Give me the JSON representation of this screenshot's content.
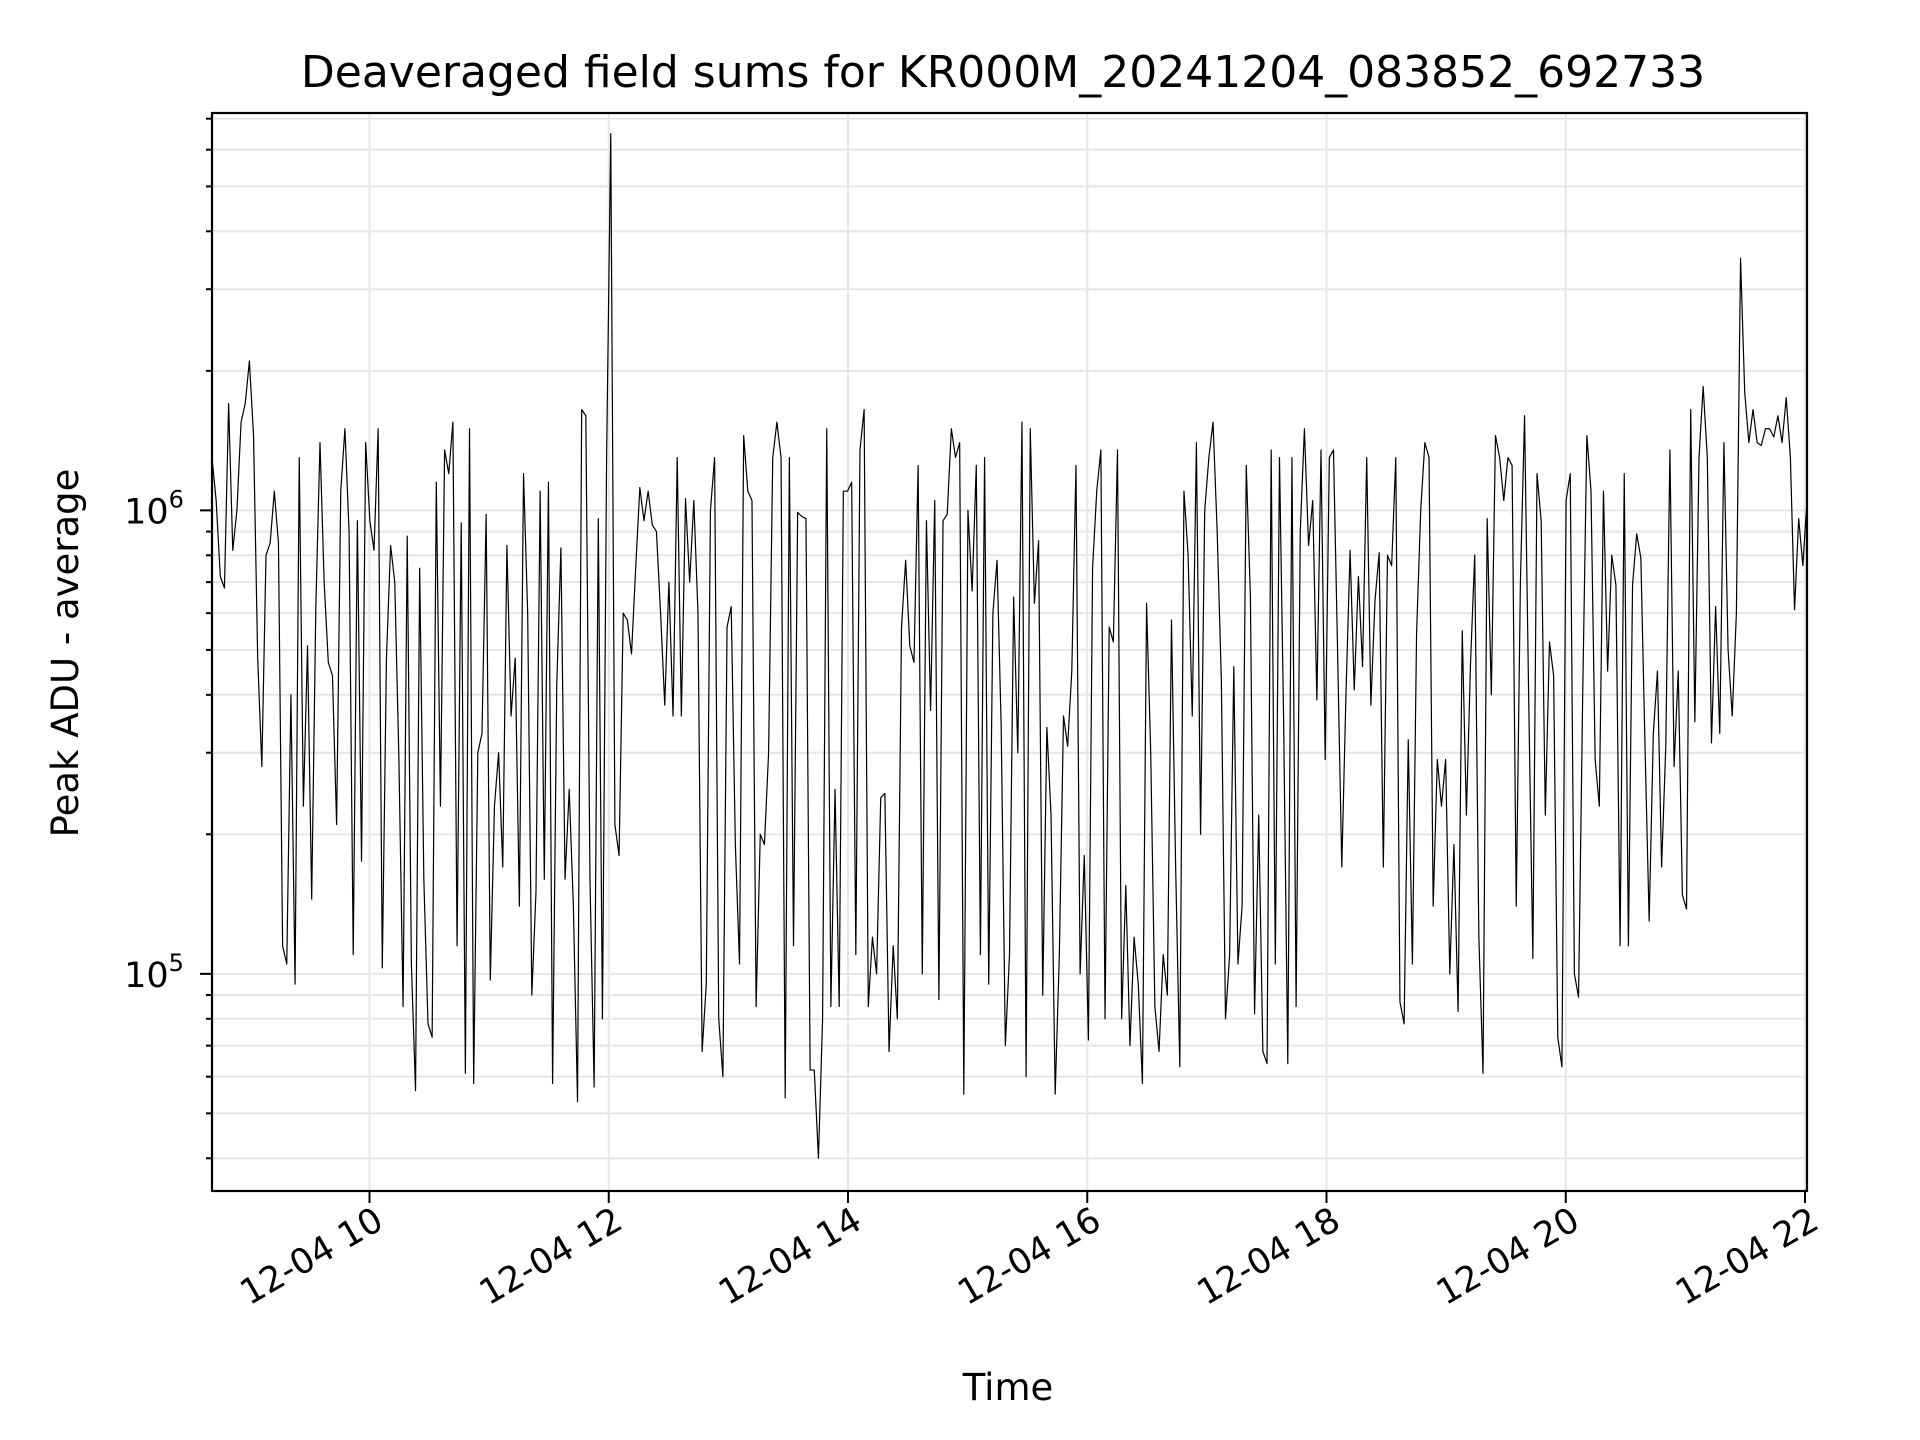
{
  "chart_data": {
    "type": "line",
    "title": "Deaveraged field sums for KR000M_20241204_083852_692733",
    "xlabel": "Time",
    "ylabel": "Peak ADU - average",
    "yscale": "log",
    "grid": true,
    "legend": "none",
    "line_color": "#000000",
    "grid_color": "#e6e6e6",
    "xlim": [
      "2024-12-04 08:41",
      "2024-12-04 22:01"
    ],
    "ylim": [
      34000,
      7200000
    ],
    "x_ticks": [
      {
        "value": "2024-12-04 10:00",
        "label": "12-04 10"
      },
      {
        "value": "2024-12-04 12:00",
        "label": "12-04 12"
      },
      {
        "value": "2024-12-04 14:00",
        "label": "12-04 14"
      },
      {
        "value": "2024-12-04 16:00",
        "label": "12-04 16"
      },
      {
        "value": "2024-12-04 18:00",
        "label": "12-04 18"
      },
      {
        "value": "2024-12-04 20:00",
        "label": "12-04 20"
      },
      {
        "value": "2024-12-04 22:00",
        "label": "12-04 22"
      }
    ],
    "y_ticks": [
      {
        "value": 100000,
        "base": "10",
        "exp": "5"
      },
      {
        "value": 1000000,
        "base": "10",
        "exp": "6"
      }
    ],
    "series": [
      {
        "x_start": "2024-12-04 08:41",
        "x_end": "2024-12-04 22:01",
        "values": [
          1300000,
          1050000,
          720000,
          680000,
          1700000,
          820000,
          1000000,
          1550000,
          1700000,
          2100000,
          1450000,
          480000,
          280000,
          800000,
          850000,
          1100000,
          850000,
          115000,
          105000,
          400000,
          95000,
          1300000,
          230000,
          510000,
          145000,
          620000,
          1400000,
          700000,
          470000,
          440000,
          210000,
          1100000,
          1500000,
          900000,
          110000,
          950000,
          175000,
          1400000,
          950000,
          820000,
          1500000,
          103000,
          480000,
          840000,
          700000,
          290000,
          85000,
          880000,
          105000,
          56000,
          750000,
          160000,
          78000,
          73000,
          1150000,
          230000,
          1350000,
          1200000,
          1550000,
          115000,
          940000,
          61000,
          1500000,
          58000,
          300000,
          330000,
          980000,
          97000,
          230000,
          300000,
          170000,
          840000,
          360000,
          480000,
          140000,
          1200000,
          600000,
          90000,
          150000,
          1100000,
          160000,
          1150000,
          58000,
          420000,
          830000,
          160000,
          250000,
          140000,
          53000,
          1650000,
          1600000,
          160000,
          57000,
          960000,
          80000,
          1300000,
          6500000,
          210000,
          180000,
          600000,
          580000,
          490000,
          750000,
          1120000,
          950000,
          1100000,
          930000,
          900000,
          600000,
          380000,
          700000,
          360000,
          1300000,
          360000,
          1060000,
          700000,
          1050000,
          600000,
          68000,
          95000,
          1000000,
          1300000,
          80000,
          60000,
          560000,
          620000,
          190000,
          105000,
          1450000,
          1100000,
          1050000,
          85000,
          200000,
          190000,
          300000,
          1300000,
          1550000,
          1300000,
          54000,
          1300000,
          115000,
          990000,
          970000,
          960000,
          62000,
          62000,
          40000,
          80000,
          1500000,
          85000,
          250000,
          85000,
          1100000,
          1100000,
          1150000,
          110000,
          1350000,
          1650000,
          85000,
          120000,
          100000,
          240000,
          245000,
          68000,
          115000,
          80000,
          560000,
          780000,
          510000,
          470000,
          1250000,
          100000,
          950000,
          370000,
          1050000,
          88000,
          950000,
          980000,
          1500000,
          1300000,
          1400000,
          55000,
          1000000,
          670000,
          1250000,
          110000,
          1300000,
          95000,
          600000,
          780000,
          340000,
          70000,
          110000,
          650000,
          300000,
          1550000,
          60000,
          1500000,
          630000,
          860000,
          90000,
          340000,
          220000,
          55000,
          110000,
          360000,
          310000,
          450000,
          1250000,
          100000,
          180000,
          72000,
          750000,
          1100000,
          1350000,
          80000,
          560000,
          520000,
          1350000,
          80000,
          155000,
          70000,
          120000,
          95000,
          58000,
          630000,
          300000,
          85000,
          68000,
          110000,
          90000,
          580000,
          170000,
          63000,
          1100000,
          800000,
          360000,
          1400000,
          200000,
          1000000,
          1300000,
          1550000,
          900000,
          430000,
          80000,
          110000,
          460000,
          105000,
          140000,
          1250000,
          650000,
          82000,
          220000,
          68000,
          64000,
          1350000,
          105000,
          1300000,
          350000,
          64000,
          1300000,
          85000,
          900000,
          1500000,
          840000,
          1050000,
          390000,
          1350000,
          290000,
          1300000,
          1350000,
          490000,
          170000,
          400000,
          820000,
          410000,
          720000,
          460000,
          1300000,
          380000,
          640000,
          810000,
          170000,
          800000,
          760000,
          1300000,
          87000,
          78000,
          320000,
          105000,
          540000,
          1000000,
          1400000,
          1300000,
          140000,
          290000,
          230000,
          290000,
          100000,
          190000,
          83000,
          550000,
          220000,
          470000,
          800000,
          120000,
          61000,
          960000,
          400000,
          1450000,
          1300000,
          1050000,
          1300000,
          1250000,
          140000,
          700000,
          1600000,
          390000,
          108000,
          1200000,
          950000,
          220000,
          520000,
          440000,
          73000,
          63000,
          1050000,
          1200000,
          100000,
          89000,
          400000,
          1450000,
          1100000,
          290000,
          230000,
          1100000,
          450000,
          800000,
          690000,
          115000,
          1200000,
          115000,
          690000,
          890000,
          790000,
          310000,
          130000,
          330000,
          450000,
          170000,
          310000,
          1350000,
          280000,
          450000,
          148000,
          138000,
          1650000,
          350000,
          1300000,
          1850000,
          1300000,
          315000,
          620000,
          330000,
          1400000,
          500000,
          360000,
          600000,
          3500000,
          1800000,
          1400000,
          1650000,
          1400000,
          1380000,
          1500000,
          1500000,
          1440000,
          1600000,
          1400000,
          1750000,
          1300000,
          610000,
          960000,
          760000,
          1050000
        ]
      }
    ]
  }
}
